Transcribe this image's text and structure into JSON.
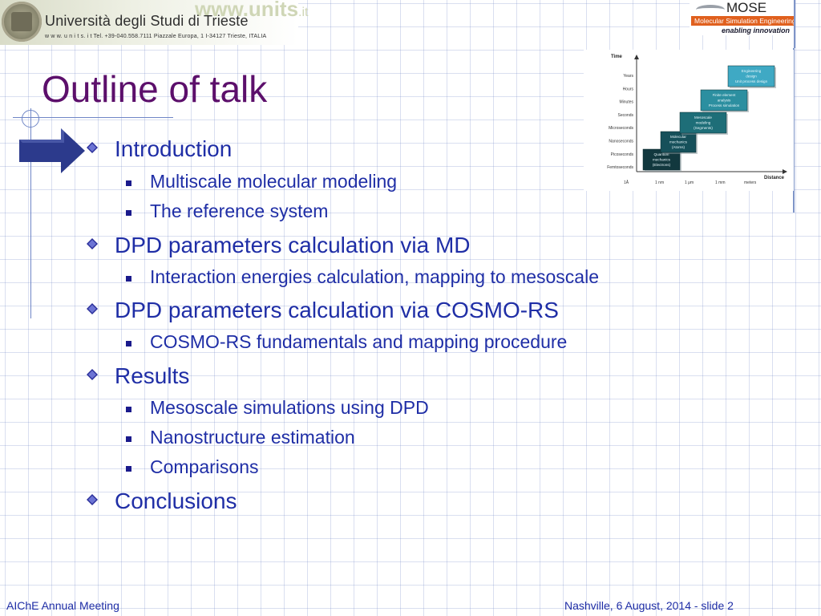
{
  "header": {
    "university_name": "Università degli Studi di Trieste",
    "university_address": "w w w. u n i t s. i t  Tel. +39-040.558.7111  Piazzale Europa, 1  I-34127 Trieste, ITALIA",
    "watermark_main": "www.units",
    "watermark_tld": ".it",
    "mose_title": "MOSE",
    "mose_subtitle": "Molecular Simulation Engineering",
    "mose_tagline": "enabling innovation"
  },
  "slide": {
    "title": "Outline of talk",
    "items": [
      {
        "label": "Introduction",
        "subitems": [
          "Multiscale molecular modeling",
          "The reference system"
        ]
      },
      {
        "label": "DPD parameters calculation via MD",
        "subitems": [
          "Interaction energies calculation, mapping to mesoscale"
        ]
      },
      {
        "label": "DPD parameters calculation via COSMO-RS",
        "subitems": [
          "COSMO-RS fundamentals and mapping procedure"
        ]
      },
      {
        "label": "Results",
        "subitems": [
          "Mesoscale simulations using DPD",
          "Nanostructure estimation",
          "Comparisons"
        ]
      },
      {
        "label": "Conclusions",
        "subitems": []
      }
    ]
  },
  "figure": {
    "y_axis_label": "Time",
    "x_axis_label": "Distance",
    "time_scales": [
      "Years",
      "Hours",
      "Minutes",
      "Seconds",
      "Microseconds",
      "Nanoseconds",
      "Picoseconds",
      "Femtoseconds"
    ],
    "distance_scales": [
      "1Å",
      "1 nm",
      "1 μm",
      "1 mm",
      "meters"
    ],
    "boxes": [
      {
        "lines": [
          "Quantum",
          "mechanics",
          "(Electrons)"
        ],
        "color": "#12383e"
      },
      {
        "lines": [
          "Molecular",
          "mechanics",
          "(Atoms)"
        ],
        "color": "#16505a"
      },
      {
        "lines": [
          "Mesoscale",
          "modeling",
          "(Segments)"
        ],
        "color": "#1e6e78"
      },
      {
        "lines": [
          "Finite element",
          "analysis",
          "Process simulation"
        ],
        "color": "#2c8fa0"
      },
      {
        "lines": [
          "Engineering",
          "design",
          "Unit process design"
        ],
        "color": "#3fa9c4"
      }
    ]
  },
  "footer": {
    "left": "AIChE Annual Meeting",
    "right": "Nashville, 6 August, 2014 - slide 2"
  },
  "colors": {
    "title": "#5c0f6b",
    "text": "#1f2ea6",
    "grid_line": "#7f95c8",
    "mose_orange": "#e0601e"
  }
}
